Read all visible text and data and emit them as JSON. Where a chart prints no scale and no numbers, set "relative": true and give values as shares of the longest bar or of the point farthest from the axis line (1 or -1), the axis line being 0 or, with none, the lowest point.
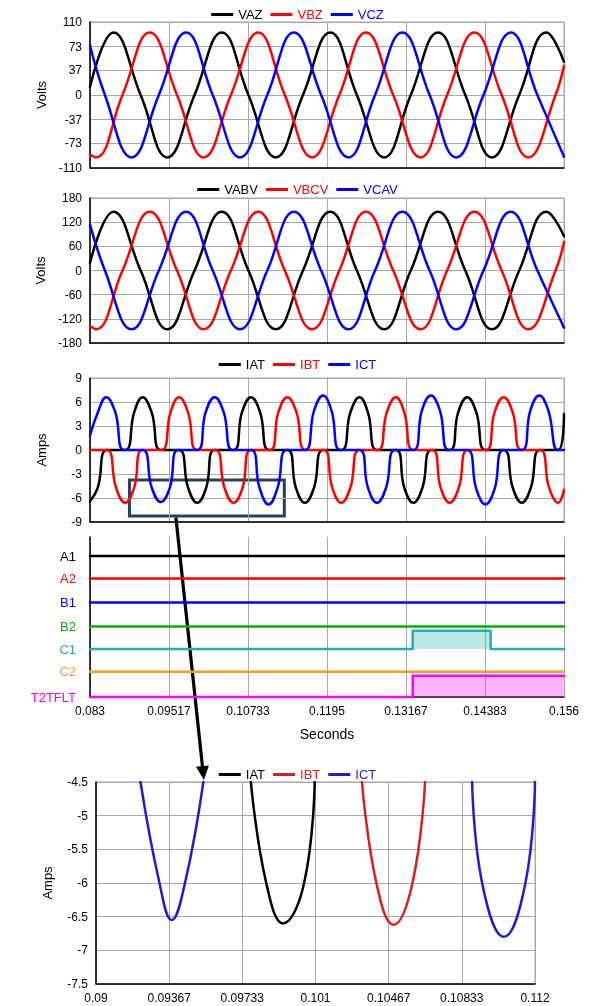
{
  "chart_data": [
    {
      "type": "line",
      "ylabel": "Volts",
      "xlim": [
        0.083,
        0.156
      ],
      "xticks": [
        0.083,
        0.09517,
        0.10733,
        0.1195,
        0.13167,
        0.14383,
        0.156
      ],
      "ylim": [
        -110,
        110
      ],
      "yticks": [
        -110,
        -73,
        -37,
        0,
        37,
        73,
        110
      ],
      "tick_labels": "y",
      "grid": true,
      "legend": "top",
      "marker": "none",
      "series": [
        {
          "name": "VAZ",
          "color": "#000000",
          "x": [
            0.083,
            0.0866,
            0.0908,
            0.0949,
            0.0991,
            0.1033,
            0.1074,
            0.1116,
            0.1158,
            0.12,
            0.1241,
            0.1283,
            0.1324,
            0.1366,
            0.1408,
            0.1449,
            0.1491,
            0.1533,
            0.156
          ],
          "values": [
            12,
            94,
            0,
            -94,
            0,
            94,
            0,
            -94,
            0,
            94,
            0,
            -94,
            0,
            94,
            0,
            -94,
            0,
            94,
            50
          ]
        },
        {
          "name": "VBZ",
          "color": "#ff0000",
          "x": [
            0.083,
            0.0839,
            0.088,
            0.0922,
            0.0964,
            0.1005,
            0.1047,
            0.1089,
            0.113,
            0.1172,
            0.1214,
            0.1255,
            0.1297,
            0.1339,
            0.138,
            0.1422,
            0.1464,
            0.1505,
            0.1547,
            0.156
          ],
          "values": [
            -90,
            -94,
            0,
            94,
            0,
            -94,
            0,
            94,
            0,
            -94,
            0,
            94,
            0,
            -94,
            0,
            94,
            0,
            -94,
            0,
            44
          ]
        },
        {
          "name": "VCZ",
          "color": "#0000ff",
          "x": [
            0.083,
            0.0853,
            0.0894,
            0.0936,
            0.0978,
            0.1019,
            0.1061,
            0.1103,
            0.1144,
            0.1186,
            0.1228,
            0.1269,
            0.1311,
            0.1353,
            0.1394,
            0.1436,
            0.1478,
            0.1519,
            0.156
          ],
          "values": [
            75,
            0,
            -94,
            0,
            94,
            0,
            -94,
            0,
            94,
            0,
            -94,
            0,
            94,
            0,
            -94,
            0,
            94,
            0,
            -93
          ]
        }
      ]
    },
    {
      "type": "line",
      "ylabel": "Volts",
      "xlim": [
        0.083,
        0.156
      ],
      "xticks": [
        0.083,
        0.09517,
        0.10733,
        0.1195,
        0.13167,
        0.14383,
        0.156
      ],
      "ylim": [
        -180,
        180
      ],
      "yticks": [
        -180,
        -120,
        -60,
        0,
        60,
        120,
        180
      ],
      "tick_labels": "y",
      "grid": true,
      "legend": "top",
      "marker": "none",
      "series": [
        {
          "name": "VABV",
          "color": "#000000",
          "x": [
            0.083,
            0.0866,
            0.0908,
            0.0949,
            0.0991,
            0.1033,
            0.1074,
            0.1116,
            0.1158,
            0.12,
            0.1241,
            0.1283,
            0.1324,
            0.1366,
            0.1408,
            0.1449,
            0.1491,
            0.1533,
            0.156
          ],
          "values": [
            19,
            146,
            0,
            -146,
            0,
            146,
            0,
            -146,
            0,
            146,
            0,
            -146,
            0,
            146,
            0,
            -146,
            0,
            146,
            85
          ]
        },
        {
          "name": "VBCV",
          "color": "#ff0000",
          "x": [
            0.083,
            0.0839,
            0.088,
            0.0922,
            0.0964,
            0.1005,
            0.1047,
            0.1089,
            0.113,
            0.1172,
            0.1214,
            0.1255,
            0.1297,
            0.1339,
            0.138,
            0.1422,
            0.1464,
            0.1505,
            0.1547,
            0.156
          ],
          "values": [
            -138,
            -146,
            0,
            146,
            0,
            -146,
            0,
            146,
            0,
            -146,
            0,
            146,
            0,
            -146,
            0,
            146,
            0,
            -146,
            0,
            71
          ]
        },
        {
          "name": "VCAV",
          "color": "#0000ff",
          "x": [
            0.083,
            0.0853,
            0.0894,
            0.0936,
            0.0978,
            0.1019,
            0.1061,
            0.1103,
            0.1144,
            0.1186,
            0.1228,
            0.1269,
            0.1311,
            0.1353,
            0.1394,
            0.1436,
            0.1478,
            0.1519,
            0.156
          ],
          "values": [
            114,
            0,
            -146,
            0,
            146,
            0,
            -146,
            0,
            146,
            0,
            -146,
            0,
            146,
            0,
            -146,
            0,
            146,
            0,
            -142
          ]
        }
      ]
    },
    {
      "type": "line",
      "ylabel": "Amps",
      "xlim": [
        0.083,
        0.156
      ],
      "xticks": [
        0.083,
        0.09517,
        0.10733,
        0.1195,
        0.13167,
        0.14383,
        0.156
      ],
      "ylim": [
        -9,
        9
      ],
      "yticks": [
        -9,
        -6,
        -3,
        0,
        3,
        6,
        9
      ],
      "tick_labels": "y",
      "grid": true,
      "legend": "top",
      "marker": "none",
      "series": [
        {
          "name": "IAT",
          "color": "#000000",
          "x": [
            0.083,
            0.0842,
            0.0856,
            0.0884,
            0.0898,
            0.0911,
            0.0925,
            0.0939,
            0.0967,
            0.0981,
            0.0995,
            0.1009,
            0.1022,
            0.1051,
            0.1064,
            0.1078,
            0.1092,
            0.1106,
            0.1134,
            0.1147,
            0.1161,
            0.1175,
            0.1189,
            0.1217,
            0.1231,
            0.1245,
            0.1258,
            0.1272,
            0.1301,
            0.1314,
            0.1328,
            0.1342,
            0.1356,
            0.1384,
            0.1397,
            0.1411,
            0.1425,
            0.1439,
            0.1467,
            0.1481,
            0.1495,
            0.1509,
            0.1523,
            0.1551,
            0.156
          ],
          "values": [
            -6.4,
            -4.7,
            0,
            0,
            4.7,
            6.6,
            4.7,
            0,
            0,
            -4.7,
            -6.6,
            -4.7,
            0,
            0,
            4.7,
            6.6,
            4.7,
            0,
            0,
            -4.7,
            -6.6,
            -4.7,
            0,
            0,
            4.7,
            6.6,
            4.7,
            0,
            0,
            -4.7,
            -6.6,
            -4.7,
            0,
            0,
            4.7,
            6.6,
            4.7,
            0,
            0,
            -4.7,
            -6.6,
            -4.7,
            0,
            0,
            4.5
          ]
        },
        {
          "name": "IBT",
          "color": "#ff0000",
          "x": [
            0.083,
            0.0856,
            0.087,
            0.0884,
            0.0898,
            0.0911,
            0.094,
            0.0954,
            0.0967,
            0.0981,
            0.0995,
            0.1023,
            0.1037,
            0.1051,
            0.1065,
            0.1078,
            0.1107,
            0.112,
            0.1134,
            0.1148,
            0.1162,
            0.119,
            0.1203,
            0.1217,
            0.1231,
            0.1245,
            0.1273,
            0.1287,
            0.1301,
            0.1314,
            0.1328,
            0.1357,
            0.137,
            0.1384,
            0.1398,
            0.1412,
            0.144,
            0.1453,
            0.1467,
            0.1481,
            0.1495,
            0.1523,
            0.1537,
            0.1551,
            0.156
          ],
          "values": [
            0,
            0,
            -4.7,
            -6.6,
            -4.7,
            0,
            0,
            4.7,
            6.6,
            4.7,
            0,
            0,
            -4.7,
            -6.6,
            -4.7,
            0,
            0,
            4.7,
            6.6,
            4.7,
            0,
            0,
            -4.7,
            -6.6,
            -4.7,
            0,
            0,
            4.7,
            6.6,
            4.7,
            0,
            0,
            -4.7,
            -6.6,
            -4.7,
            0,
            0,
            4.7,
            6.6,
            4.7,
            0,
            0,
            -4.7,
            -6.6,
            -5
          ]
        },
        {
          "name": "ICT",
          "color": "#0000ff",
          "x": [
            0.083,
            0.0842,
            0.0855,
            0.0869,
            0.0883,
            0.0911,
            0.0925,
            0.0939,
            0.0953,
            0.0966,
            0.0995,
            0.1008,
            0.1022,
            0.1036,
            0.105,
            0.1078,
            0.1091,
            0.1105,
            0.1119,
            0.1133,
            0.1161,
            0.1175,
            0.1189,
            0.1202,
            0.1216,
            0.1245,
            0.1258,
            0.1272,
            0.1286,
            0.13,
            0.1328,
            0.1341,
            0.1355,
            0.1369,
            0.1383,
            0.1411,
            0.1425,
            0.1439,
            0.1453,
            0.1467,
            0.1495,
            0.1508,
            0.1522,
            0.1536,
            0.155,
            0.156
          ],
          "values": [
            1.8,
            4.7,
            6.6,
            4.7,
            0,
            0,
            -4.7,
            -6.5,
            -4.7,
            0,
            0,
            4.7,
            6.6,
            4.7,
            0,
            0,
            -4.7,
            -6.8,
            -4.7,
            0,
            0,
            4.9,
            6.8,
            4.9,
            0,
            0,
            -4.7,
            -6.6,
            -4.7,
            0,
            0,
            4.9,
            6.8,
            4.9,
            0,
            0,
            -4.9,
            -6.8,
            -4.9,
            0,
            0,
            4.9,
            6.8,
            4.9,
            0,
            0
          ]
        }
      ]
    },
    {
      "type": "step",
      "relative": true,
      "xlabel": "Seconds",
      "xlim": [
        0.083,
        0.156
      ],
      "xticks": [
        0.083,
        0.09517,
        0.10733,
        0.1195,
        0.13167,
        0.14383,
        0.156
      ],
      "grid": "x",
      "legend": "left",
      "marker": "none",
      "series": [
        {
          "name": "A1",
          "color": "#000000",
          "x": [
            0.083,
            0.156
          ],
          "values": [
            1,
            1
          ]
        },
        {
          "name": "A2",
          "color": "#ff0000",
          "x": [
            0.083,
            0.156
          ],
          "values": [
            0.84,
            0.84
          ]
        },
        {
          "name": "B1",
          "color": "#0000ff",
          "x": [
            0.083,
            0.156
          ],
          "values": [
            0.67,
            0.67
          ]
        },
        {
          "name": "B2",
          "color": "#00b000",
          "x": [
            0.083,
            0.156
          ],
          "values": [
            0.5,
            0.5
          ]
        },
        {
          "name": "C1",
          "type": "area",
          "color": "#20b0b0",
          "x": [
            0.083,
            0.1327,
            0.1447,
            0.156
          ],
          "values": [
            0.34,
            0.47,
            0.34,
            0.34
          ]
        },
        {
          "name": "C2",
          "color": "#ff9933",
          "x": [
            0.083,
            0.156
          ],
          "values": [
            0.18,
            0.18
          ]
        },
        {
          "name": "T2TFLT",
          "type": "area",
          "color": "#ff00ff",
          "x": [
            0.083,
            0.1327,
            0.156
          ],
          "values": [
            0,
            0.15,
            0.15
          ]
        }
      ]
    },
    {
      "type": "line",
      "ylabel": "Amps",
      "xlim": [
        0.09,
        0.112
      ],
      "xticks": [
        0.09,
        0.09367,
        0.09733,
        0.101,
        0.10467,
        0.10833,
        0.112
      ],
      "ylim": [
        -7.5,
        -4.5
      ],
      "yticks": [
        -7.5,
        -7,
        -6.5,
        -6,
        -5.5,
        -5,
        -4.5
      ],
      "grid": true,
      "legend": "top",
      "marker": "none",
      "series": [
        {
          "name": "IAT",
          "color": "#000000",
          "x": [
            0.09776,
            0.09853,
            0.09938,
            0.10043,
            0.10096
          ],
          "values": [
            -4.5,
            -6,
            -6.6,
            -6,
            -4.5
          ]
        },
        {
          "name": "IBT",
          "color": "#d42020",
          "x": [
            0.10333,
            0.10405,
            0.10491,
            0.10586,
            0.10649
          ],
          "values": [
            -4.5,
            -6,
            -6.62,
            -6,
            -4.5
          ]
        },
        {
          "name": "ICT",
          "color": "#1f1fc8",
          "x": [
            0.09223,
            0.09318,
            0.09379,
            0.09446,
            0.09538,
            0.102,
            0.10885,
            0.10935,
            0.11044,
            0.11152,
            0.112
          ],
          "values": [
            -4.5,
            -6,
            -6.55,
            -6,
            -4.5,
            null,
            -4.5,
            -6,
            -6.8,
            -6,
            -4.5
          ]
        }
      ]
    }
  ]
}
